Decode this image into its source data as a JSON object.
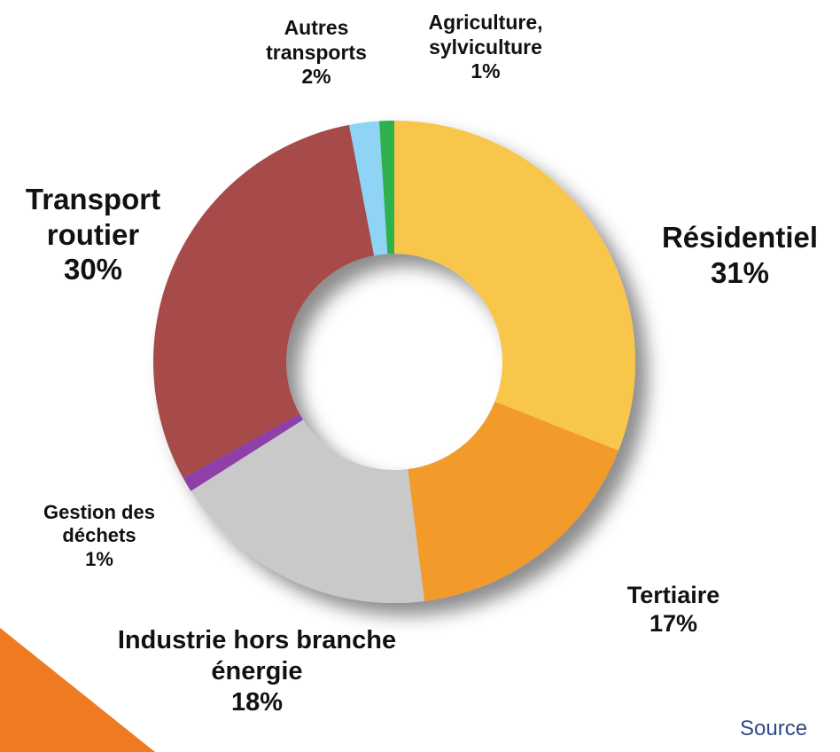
{
  "chart_data": {
    "type": "donut",
    "categories": [
      "Résidentiel",
      "Tertiaire",
      "Industrie hors branche énergie",
      "Gestion des déchets",
      "Transport routier",
      "Autres transports",
      "Agriculture, sylviculture"
    ],
    "values": [
      31,
      17,
      18,
      1,
      30,
      2,
      1
    ],
    "value_labels": [
      "31%",
      "17%",
      "18%",
      "1%",
      "30%",
      "2%",
      "1%"
    ],
    "colors": [
      "#f8c64c",
      "#f29a2c",
      "#c9c9c9",
      "#8e3fa8",
      "#a64c48",
      "#8fd4f5",
      "#2fb04c"
    ],
    "source": "Source"
  }
}
